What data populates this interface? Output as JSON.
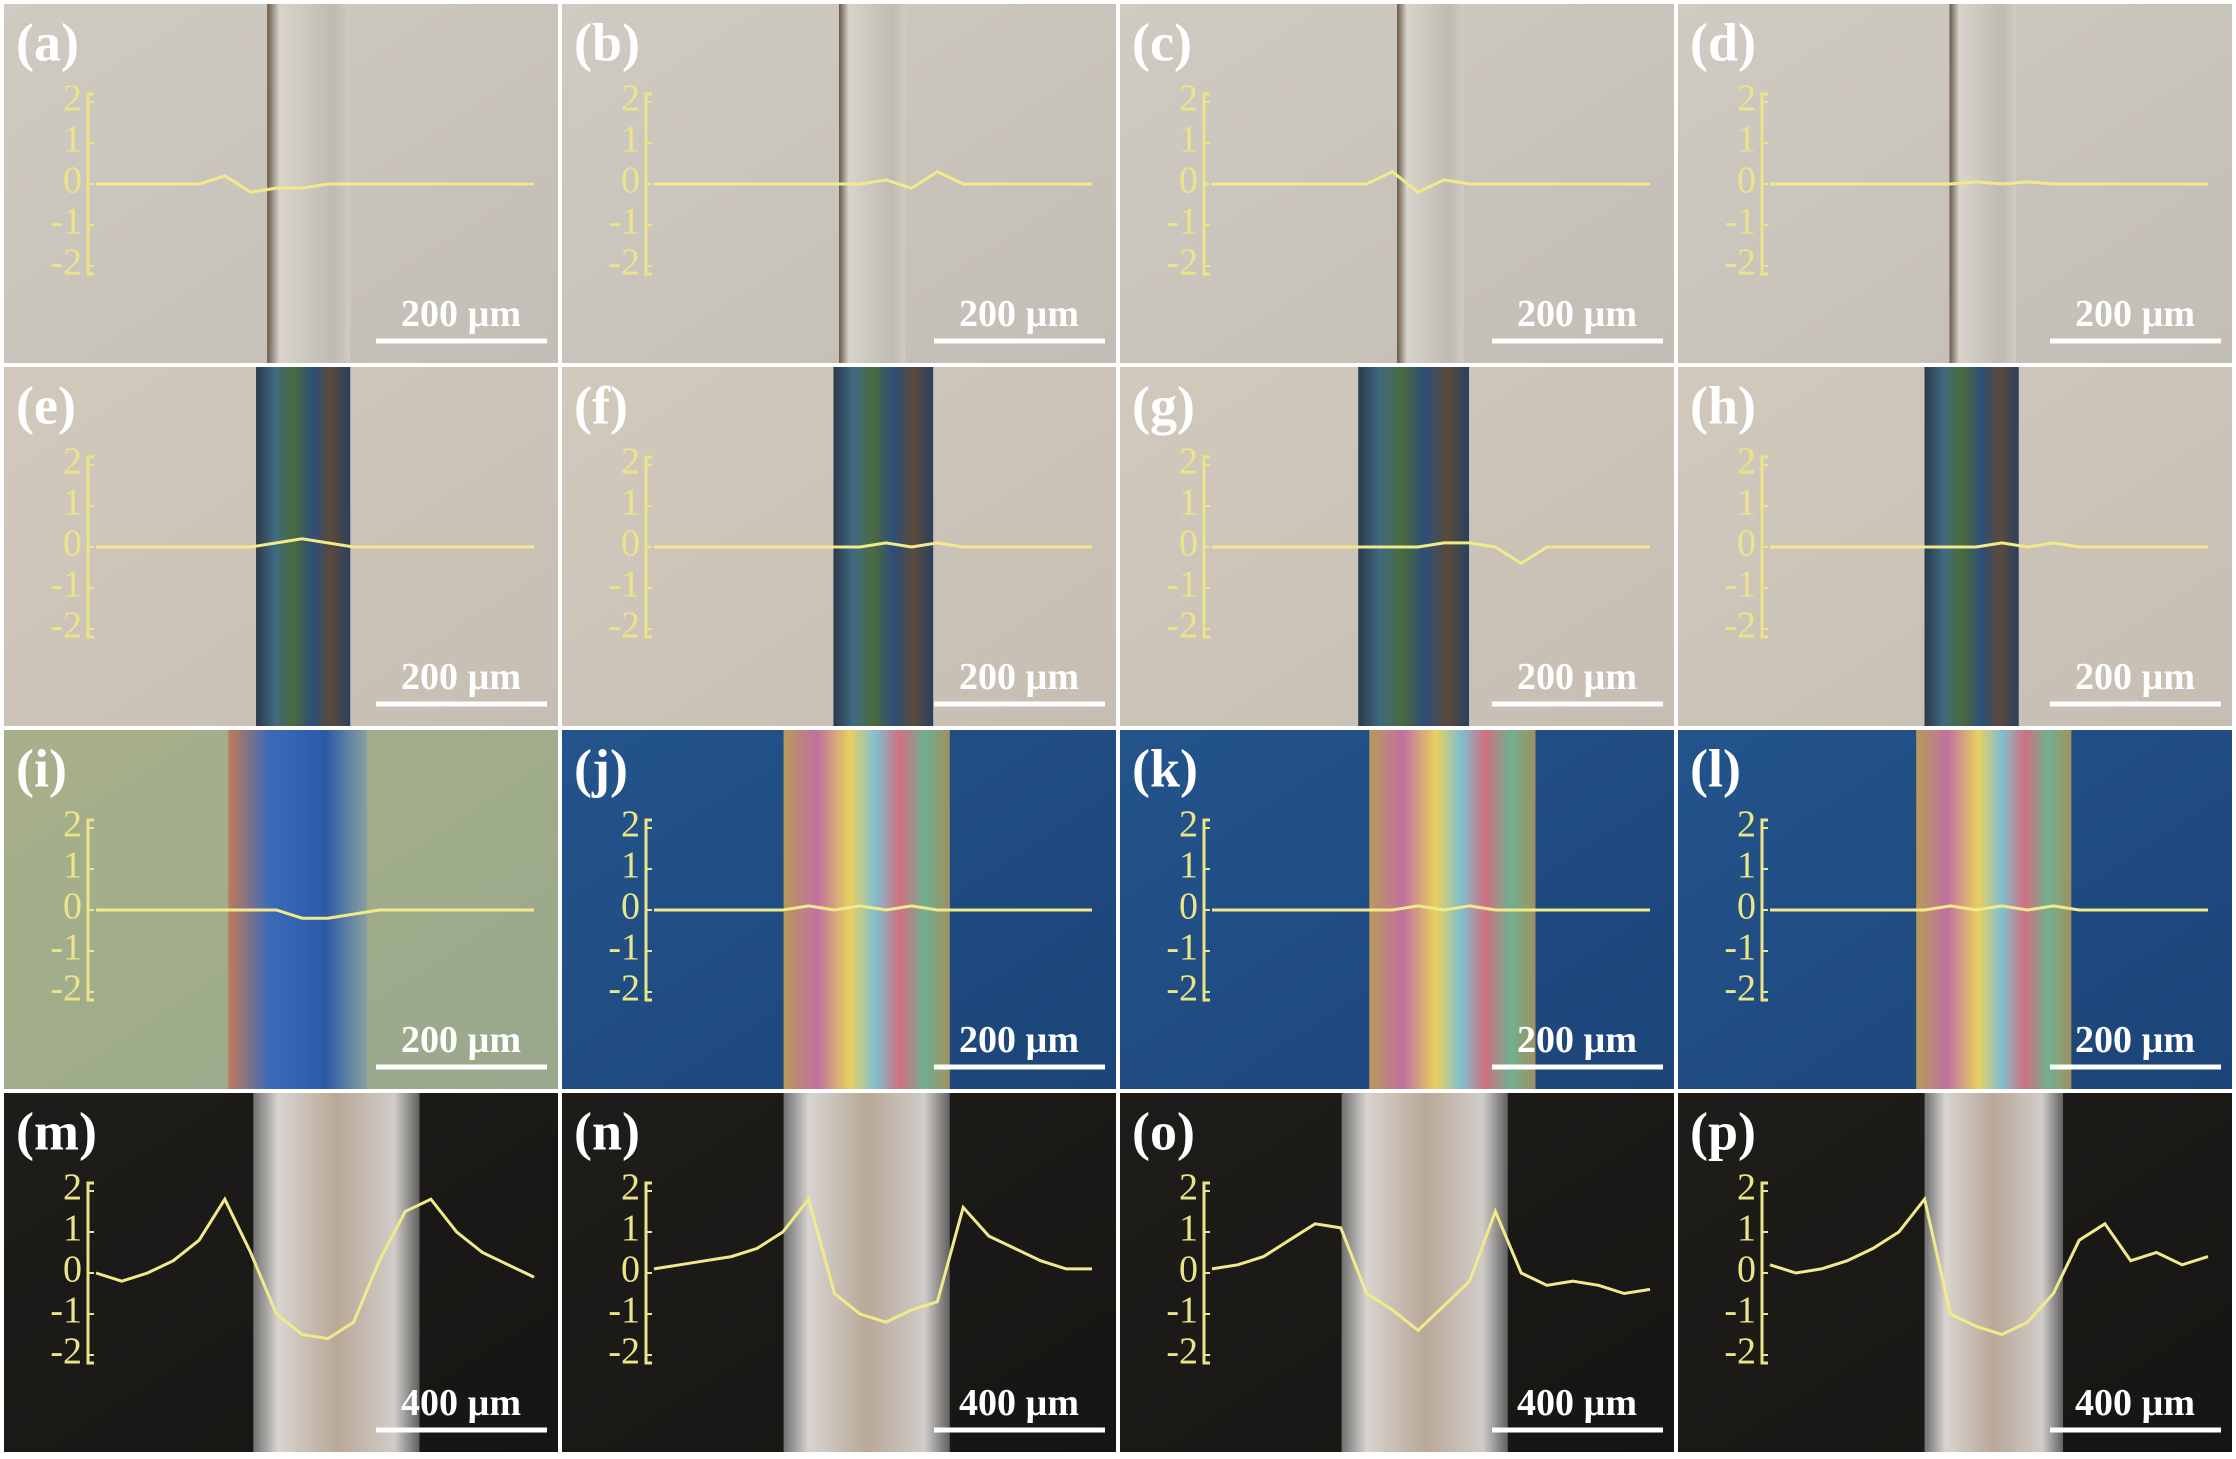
{
  "panels": [
    {
      "label": "(a)",
      "scale_bar": "200 µm",
      "yticks": [
        2,
        1,
        0,
        -1,
        -2
      ],
      "profile": [
        0,
        0,
        0,
        0,
        0,
        0.2,
        -0.2,
        -0.1,
        -0.1,
        0,
        0,
        0,
        0,
        0,
        0,
        0,
        0,
        0
      ]
    },
    {
      "label": "(b)",
      "scale_bar": "200 µm",
      "yticks": [
        2,
        1,
        0,
        -1,
        -2
      ],
      "profile": [
        0,
        0,
        0,
        0,
        0,
        0,
        0,
        0,
        0,
        0.1,
        -0.1,
        0.3,
        0,
        0,
        0,
        0,
        0,
        0
      ]
    },
    {
      "label": "(c)",
      "scale_bar": "200 µm",
      "yticks": [
        2,
        1,
        0,
        -1,
        -2
      ],
      "profile": [
        0,
        0,
        0,
        0,
        0,
        0,
        0,
        0.3,
        -0.2,
        0.1,
        0,
        0,
        0,
        0,
        0,
        0,
        0,
        0
      ]
    },
    {
      "label": "(d)",
      "scale_bar": "200 µm",
      "yticks": [
        2,
        1,
        0,
        -1,
        -2
      ],
      "profile": [
        0,
        0,
        0,
        0,
        0,
        0,
        0,
        0,
        0.05,
        0,
        0.05,
        0,
        0,
        0,
        0,
        0,
        0,
        0
      ]
    },
    {
      "label": "(e)",
      "scale_bar": "200 µm",
      "yticks": [
        2,
        1,
        0,
        -1,
        -2
      ],
      "profile": [
        0,
        0,
        0,
        0,
        0,
        0,
        0,
        0.1,
        0.2,
        0.1,
        0,
        0,
        0,
        0,
        0,
        0,
        0,
        0
      ]
    },
    {
      "label": "(f)",
      "scale_bar": "200 µm",
      "yticks": [
        2,
        1,
        0,
        -1,
        -2
      ],
      "profile": [
        0,
        0,
        0,
        0,
        0,
        0,
        0,
        0,
        0,
        0.1,
        0,
        0.1,
        0,
        0,
        0,
        0,
        0,
        0
      ]
    },
    {
      "label": "(g)",
      "scale_bar": "200 µm",
      "yticks": [
        2,
        1,
        0,
        -1,
        -2
      ],
      "profile": [
        0,
        0,
        0,
        0,
        0,
        0,
        0,
        0,
        0,
        0.1,
        0.1,
        0,
        -0.4,
        0,
        0,
        0,
        0,
        0
      ]
    },
    {
      "label": "(h)",
      "scale_bar": "200 µm",
      "yticks": [
        2,
        1,
        0,
        -1,
        -2
      ],
      "profile": [
        0,
        0,
        0,
        0,
        0,
        0,
        0,
        0,
        0,
        0.1,
        0,
        0.1,
        0,
        0,
        0,
        0,
        0,
        0
      ]
    },
    {
      "label": "(i)",
      "scale_bar": "200 µm",
      "yticks": [
        2,
        1,
        0,
        -1,
        -2
      ],
      "profile": [
        0,
        0,
        0,
        0,
        0,
        0,
        0,
        0,
        -0.2,
        -0.2,
        -0.1,
        0,
        0,
        0,
        0,
        0,
        0,
        0
      ]
    },
    {
      "label": "(j)",
      "scale_bar": "200 µm",
      "yticks": [
        2,
        1,
        0,
        -1,
        -2
      ],
      "profile": [
        0,
        0,
        0,
        0,
        0,
        0,
        0.1,
        0,
        0.1,
        0,
        0.1,
        0,
        0,
        0,
        0,
        0,
        0,
        0
      ]
    },
    {
      "label": "(k)",
      "scale_bar": "200 µm",
      "yticks": [
        2,
        1,
        0,
        -1,
        -2
      ],
      "profile": [
        0,
        0,
        0,
        0,
        0,
        0,
        0,
        0,
        0.1,
        0,
        0.1,
        0,
        0,
        0,
        0,
        0,
        0,
        0
      ]
    },
    {
      "label": "(l)",
      "scale_bar": "200 µm",
      "yticks": [
        2,
        1,
        0,
        -1,
        -2
      ],
      "profile": [
        0,
        0,
        0,
        0,
        0,
        0,
        0,
        0.1,
        0,
        0.1,
        0,
        0.1,
        0,
        0,
        0,
        0,
        0,
        0
      ]
    },
    {
      "label": "(m)",
      "scale_bar": "400 µm",
      "yticks": [
        2,
        1,
        0,
        -1,
        -2
      ],
      "profile": [
        0,
        -0.2,
        0,
        0.3,
        0.8,
        1.8,
        0.5,
        -1,
        -1.5,
        -1.6,
        -1.2,
        0.3,
        1.5,
        1.8,
        1.0,
        0.5,
        0.2,
        -0.1
      ]
    },
    {
      "label": "(n)",
      "scale_bar": "400 µm",
      "yticks": [
        2,
        1,
        0,
        -1,
        -2
      ],
      "profile": [
        0.1,
        0.2,
        0.3,
        0.4,
        0.6,
        1.0,
        1.8,
        -0.5,
        -1.0,
        -1.2,
        -0.9,
        -0.7,
        1.6,
        0.9,
        0.6,
        0.3,
        0.1,
        0.1
      ]
    },
    {
      "label": "(o)",
      "scale_bar": "400 µm",
      "yticks": [
        2,
        1,
        0,
        -1,
        -2
      ],
      "profile": [
        0.1,
        0.2,
        0.4,
        0.8,
        1.2,
        1.1,
        -0.5,
        -0.9,
        -1.4,
        -0.8,
        -0.2,
        1.5,
        0,
        -0.3,
        -0.2,
        -0.3,
        -0.5,
        -0.4
      ]
    },
    {
      "label": "(p)",
      "scale_bar": "400 µm",
      "yticks": [
        2,
        1,
        0,
        -1,
        -2
      ],
      "profile": [
        0.2,
        0,
        0.1,
        0.3,
        0.6,
        1.0,
        1.8,
        -1.0,
        -1.3,
        -1.5,
        -1.2,
        -0.5,
        0.8,
        1.2,
        0.3,
        0.5,
        0.2,
        0.4
      ]
    }
  ]
}
